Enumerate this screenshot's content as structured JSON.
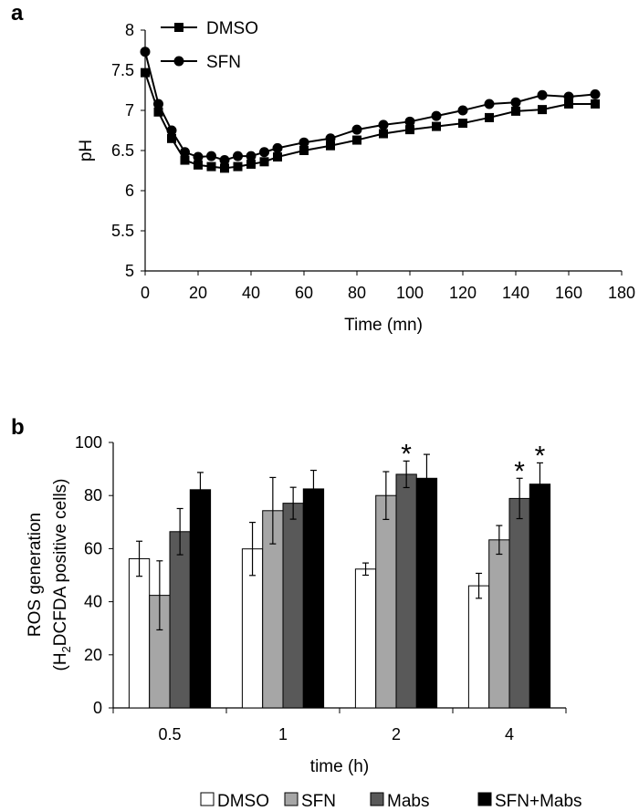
{
  "chart_data": [
    {
      "panel_label": "a",
      "type": "line",
      "xlabel": "Time (mn)",
      "ylabel": "pH",
      "xlim": [
        0,
        180
      ],
      "ylim": [
        5,
        8
      ],
      "xticks": [
        "0",
        "20",
        "40",
        "60",
        "80",
        "100",
        "120",
        "140",
        "160",
        "180"
      ],
      "yticks": [
        "5",
        "5.5",
        "6",
        "6.5",
        "7",
        "7.5",
        "8"
      ],
      "legend_position": "top-left",
      "x": [
        0,
        5,
        10,
        15,
        20,
        25,
        30,
        35,
        40,
        45,
        50,
        60,
        70,
        80,
        90,
        100,
        110,
        120,
        130,
        140,
        150,
        160,
        170
      ],
      "series": [
        {
          "name": "DMSO",
          "marker": "square",
          "values": [
            7.47,
            6.98,
            6.65,
            6.38,
            6.32,
            6.3,
            6.28,
            6.3,
            6.33,
            6.36,
            6.42,
            6.5,
            6.56,
            6.63,
            6.71,
            6.76,
            6.8,
            6.84,
            6.91,
            6.99,
            7.01,
            7.08,
            7.08
          ]
        },
        {
          "name": "SFN",
          "marker": "circle",
          "values": [
            7.73,
            7.08,
            6.75,
            6.48,
            6.42,
            6.43,
            6.38,
            6.43,
            6.43,
            6.48,
            6.53,
            6.6,
            6.65,
            6.76,
            6.82,
            6.86,
            6.93,
            7.0,
            7.08,
            7.1,
            7.19,
            7.17,
            7.2
          ]
        }
      ]
    },
    {
      "panel_label": "b",
      "type": "bar",
      "xlabel": "time (h)",
      "ylabel_line1": "ROS generation",
      "ylabel_line2_pre": "(H",
      "ylabel_line2_sub": "2",
      "ylabel_line2_post": "DCFDA positive cells)",
      "ylim": [
        0,
        100
      ],
      "yticks": [
        "0",
        "20",
        "40",
        "60",
        "80",
        "100"
      ],
      "categories": [
        "0.5",
        "1",
        "2",
        "4"
      ],
      "legend_position": "bottom",
      "significance_marker": "*",
      "series": [
        {
          "name": "DMSO",
          "color": "#ffffff",
          "values": [
            56.2,
            59.9,
            52.3,
            46.0
          ],
          "errors": [
            6.6,
            10.0,
            2.3,
            4.7
          ],
          "significant": [
            false,
            false,
            false,
            false
          ]
        },
        {
          "name": "SFN",
          "color": "#a6a6a6",
          "values": [
            42.4,
            74.3,
            80.0,
            63.3
          ],
          "errors": [
            13.0,
            12.5,
            9.0,
            5.4
          ],
          "significant": [
            false,
            false,
            false,
            false
          ]
        },
        {
          "name": "Mabs",
          "color": "#595959",
          "values": [
            66.4,
            77.1,
            88.0,
            78.9
          ],
          "errors": [
            8.7,
            6.0,
            5.0,
            7.6
          ],
          "significant": [
            false,
            false,
            true,
            true
          ]
        },
        {
          "name": "SFN+Mabs",
          "color": "#000000",
          "values": [
            82.2,
            82.5,
            86.5,
            84.3
          ],
          "errors": [
            6.5,
            7.0,
            9.0,
            8.0
          ],
          "significant": [
            false,
            false,
            false,
            true
          ]
        }
      ]
    }
  ]
}
